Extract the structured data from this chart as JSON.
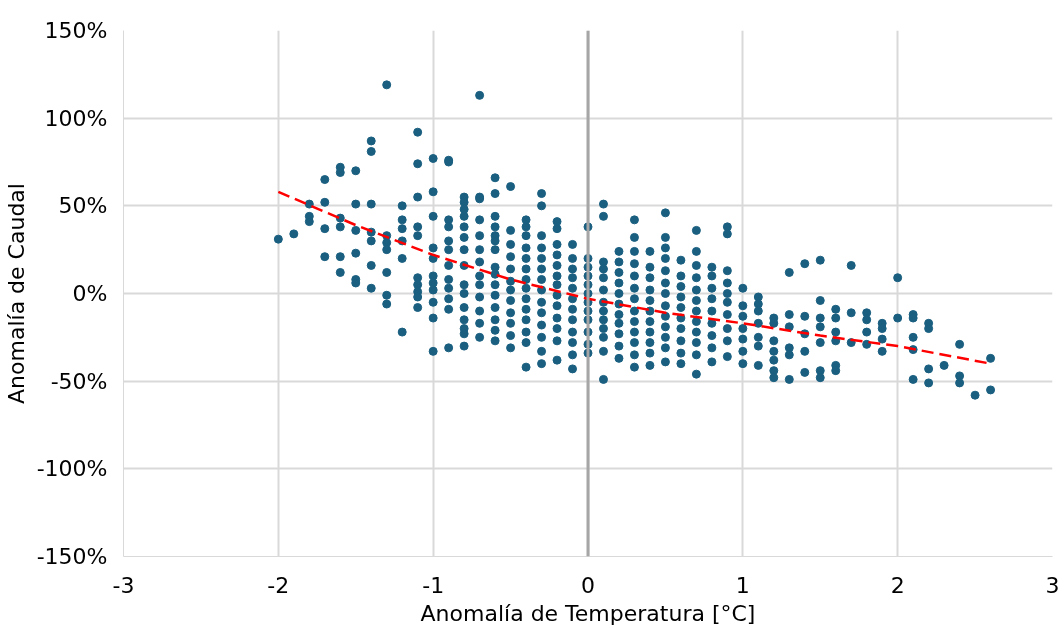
{
  "chart_data": {
    "type": "scatter",
    "xlabel": "Anomalía de Temperatura [°C]",
    "ylabel": "Anomalía de Caudal",
    "xlim": [
      -3,
      3
    ],
    "xticks": [
      -3,
      -2,
      -1,
      0,
      1,
      2,
      3
    ],
    "ylim": [
      -150,
      150
    ],
    "yticks": [
      {
        "value": -150,
        "label": "-150%"
      },
      {
        "value": -100,
        "label": "-100%"
      },
      {
        "value": -50,
        "label": "-50%"
      },
      {
        "value": 0,
        "label": "0%"
      },
      {
        "value": 50,
        "label": "50%"
      },
      {
        "value": 100,
        "label": "100%"
      },
      {
        "value": 150,
        "label": "150%"
      }
    ],
    "grid": true,
    "marker": "circle",
    "ref_lines": [
      {
        "axis": "x",
        "value": 0,
        "color": "#a6a6a6"
      }
    ],
    "series": [
      {
        "color": "#1a5f80",
        "x": [
          -2.0,
          -1.9,
          -1.8,
          -1.8,
          -1.8,
          -1.7,
          -1.7,
          -1.7,
          -1.7,
          -1.6,
          -1.6,
          -1.6,
          -1.6,
          -1.6,
          -1.6,
          -1.5,
          -1.5,
          -1.5,
          -1.5,
          -1.5,
          -1.5,
          -1.4,
          -1.4,
          -1.4,
          -1.4,
          -1.4,
          -1.4,
          -1.4,
          -1.3,
          -1.3,
          -1.3,
          -1.3,
          -1.3,
          -1.3,
          -1.3,
          -1.2,
          -1.2,
          -1.2,
          -1.2,
          -1.2,
          -1.2,
          -1.1,
          -1.1,
          -1.1,
          -1.1,
          -1.1,
          -1.1,
          -1.1,
          -1.1,
          -1.1,
          -1.1,
          -1.0,
          -1.0,
          -1.0,
          -1.0,
          -1.0,
          -1.0,
          -1.0,
          -1.0,
          -1.0,
          -1.0,
          -1.0,
          -0.9,
          -0.9,
          -0.9,
          -0.9,
          -0.9,
          -0.9,
          -0.9,
          -0.9,
          -0.9,
          -0.9,
          -0.9,
          -0.9,
          -0.8,
          -0.8,
          -0.8,
          -0.8,
          -0.8,
          -0.8,
          -0.8,
          -0.8,
          -0.8,
          -0.8,
          -0.8,
          -0.8,
          -0.8,
          -0.8,
          -0.8,
          -0.7,
          -0.7,
          -0.7,
          -0.7,
          -0.7,
          -0.7,
          -0.7,
          -0.7,
          -0.7,
          -0.7,
          -0.7,
          -0.7,
          -0.7,
          -0.6,
          -0.6,
          -0.6,
          -0.6,
          -0.6,
          -0.6,
          -0.6,
          -0.6,
          -0.6,
          -0.6,
          -0.6,
          -0.6,
          -0.6,
          -0.6,
          -0.6,
          -0.5,
          -0.5,
          -0.5,
          -0.5,
          -0.5,
          -0.5,
          -0.5,
          -0.5,
          -0.5,
          -0.5,
          -0.5,
          -0.5,
          -0.4,
          -0.4,
          -0.4,
          -0.4,
          -0.4,
          -0.4,
          -0.4,
          -0.4,
          -0.4,
          -0.4,
          -0.4,
          -0.4,
          -0.4,
          -0.4,
          -0.3,
          -0.3,
          -0.3,
          -0.3,
          -0.3,
          -0.3,
          -0.3,
          -0.3,
          -0.3,
          -0.3,
          -0.3,
          -0.3,
          -0.3,
          -0.3,
          -0.2,
          -0.2,
          -0.2,
          -0.2,
          -0.2,
          -0.2,
          -0.2,
          -0.2,
          -0.2,
          -0.2,
          -0.2,
          -0.2,
          -0.2,
          -0.1,
          -0.1,
          -0.1,
          -0.1,
          -0.1,
          -0.1,
          -0.1,
          -0.1,
          -0.1,
          -0.1,
          -0.1,
          -0.1,
          0.0,
          0.0,
          0.0,
          0.0,
          0.0,
          0.0,
          0.0,
          0.0,
          0.0,
          0.0,
          0.0,
          0.0,
          0.1,
          0.1,
          0.1,
          0.1,
          0.1,
          0.1,
          0.1,
          0.1,
          0.1,
          0.1,
          0.1,
          0.1,
          0.1,
          0.2,
          0.2,
          0.2,
          0.2,
          0.2,
          0.2,
          0.2,
          0.2,
          0.2,
          0.2,
          0.2,
          0.3,
          0.3,
          0.3,
          0.3,
          0.3,
          0.3,
          0.3,
          0.3,
          0.3,
          0.3,
          0.3,
          0.3,
          0.3,
          0.4,
          0.4,
          0.4,
          0.4,
          0.4,
          0.4,
          0.4,
          0.4,
          0.4,
          0.4,
          0.4,
          0.5,
          0.5,
          0.5,
          0.5,
          0.5,
          0.5,
          0.5,
          0.5,
          0.5,
          0.5,
          0.5,
          0.5,
          0.5,
          0.6,
          0.6,
          0.6,
          0.6,
          0.6,
          0.6,
          0.6,
          0.6,
          0.6,
          0.6,
          0.7,
          0.7,
          0.7,
          0.7,
          0.7,
          0.7,
          0.7,
          0.7,
          0.7,
          0.7,
          0.7,
          0.7,
          0.8,
          0.8,
          0.8,
          0.8,
          0.8,
          0.8,
          0.8,
          0.8,
          0.8,
          0.9,
          0.9,
          0.9,
          0.9,
          0.9,
          0.9,
          0.9,
          0.9,
          0.9,
          0.9,
          1.0,
          1.0,
          1.0,
          1.0,
          1.0,
          1.0,
          1.0,
          1.1,
          1.1,
          1.1,
          1.1,
          1.1,
          1.1,
          1.1,
          1.2,
          1.2,
          1.2,
          1.2,
          1.2,
          1.2,
          1.2,
          1.3,
          1.3,
          1.3,
          1.3,
          1.3,
          1.3,
          1.4,
          1.4,
          1.4,
          1.4,
          1.4,
          1.5,
          1.5,
          1.5,
          1.5,
          1.5,
          1.5,
          1.5,
          1.6,
          1.6,
          1.6,
          1.6,
          1.6,
          1.6,
          1.7,
          1.7,
          1.7,
          1.8,
          1.8,
          1.8,
          1.8,
          1.9,
          1.9,
          1.9,
          1.9,
          2.0,
          2.0,
          2.1,
          2.1,
          2.1,
          2.1,
          2.1,
          2.2,
          2.2,
          2.2,
          2.2,
          2.3,
          2.4,
          2.4,
          2.4,
          2.5,
          2.6,
          2.6
        ],
        "values": [
          31,
          34,
          51,
          44,
          41,
          65,
          52,
          37,
          21,
          72,
          69,
          43,
          38,
          21,
          12,
          70,
          51,
          36,
          23,
          8,
          6,
          87,
          81,
          51,
          35,
          30,
          16,
          3,
          119,
          33,
          29,
          25,
          12,
          -1,
          -6,
          50,
          42,
          37,
          30,
          20,
          -22,
          92,
          74,
          55,
          38,
          33,
          9,
          5,
          1,
          -2,
          -8,
          77,
          58,
          44,
          26,
          20,
          10,
          6,
          2,
          -5,
          -14,
          -33,
          76,
          75,
          42,
          38,
          30,
          25,
          16,
          8,
          3,
          -3,
          -9,
          -31,
          55,
          52,
          48,
          44,
          38,
          32,
          25,
          16,
          5,
          0,
          -8,
          -15,
          -20,
          -23,
          -30,
          113,
          55,
          54,
          42,
          33,
          25,
          18,
          10,
          5,
          -2,
          -10,
          -17,
          -25,
          66,
          57,
          44,
          38,
          33,
          30,
          25,
          15,
          11,
          5,
          -1,
          -8,
          -15,
          -21,
          -27,
          61,
          36,
          28,
          21,
          14,
          7,
          2,
          -4,
          -11,
          -17,
          -24,
          -31,
          42,
          38,
          33,
          26,
          20,
          14,
          8,
          3,
          -3,
          -9,
          -15,
          -22,
          -28,
          -42,
          57,
          50,
          33,
          26,
          20,
          14,
          8,
          2,
          -5,
          -11,
          -18,
          -25,
          -33,
          -40,
          41,
          37,
          28,
          22,
          16,
          10,
          5,
          -1,
          -7,
          -14,
          -20,
          -27,
          -38,
          28,
          20,
          14,
          9,
          3,
          -3,
          -9,
          -15,
          -22,
          -28,
          -35,
          -43,
          38,
          20,
          15,
          10,
          5,
          0,
          -5,
          -10,
          -15,
          -22,
          -29,
          -34,
          51,
          44,
          18,
          14,
          9,
          2,
          -5,
          -10,
          -15,
          -20,
          -25,
          -33,
          -49,
          24,
          18,
          12,
          6,
          0,
          -6,
          -12,
          -17,
          -23,
          -30,
          -37,
          42,
          32,
          24,
          17,
          10,
          3,
          -3,
          -10,
          -16,
          -22,
          -28,
          -35,
          -42,
          24,
          15,
          9,
          2,
          -4,
          -10,
          -16,
          -22,
          -28,
          -34,
          -41,
          46,
          32,
          26,
          20,
          13,
          6,
          0,
          -7,
          -13,
          -19,
          -25,
          -31,
          -39,
          19,
          10,
          4,
          -2,
          -8,
          -14,
          -20,
          -27,
          -34,
          -40,
          36,
          24,
          16,
          9,
          2,
          -4,
          -10,
          -16,
          -22,
          -28,
          -35,
          -46,
          15,
          10,
          3,
          -3,
          -10,
          -17,
          -24,
          -31,
          -39,
          38,
          34,
          13,
          6,
          0,
          -5,
          -12,
          -20,
          -27,
          -36,
          3,
          -7,
          -13,
          -20,
          -26,
          -33,
          -40,
          -2,
          -6,
          -10,
          -17,
          -25,
          -30,
          -41,
          -14,
          -17,
          -27,
          -33,
          -38,
          -44,
          -48,
          12,
          -12,
          -19,
          -31,
          -35,
          -49,
          17,
          -13,
          -23,
          -33,
          -45,
          19,
          -4,
          -14,
          -19,
          -28,
          -44,
          -48,
          -9,
          -14,
          -22,
          -27,
          -41,
          -44,
          16,
          -11,
          -28,
          -11,
          -15,
          -22,
          -29,
          -17,
          -20,
          -26,
          -33,
          9,
          -14,
          -12,
          -14,
          -25,
          -32,
          -49,
          -17,
          -20,
          -43,
          -51,
          -41,
          -29,
          -47,
          -51,
          -58,
          -37,
          -55
        ]
      },
      {
        "type": "line",
        "color": "#ff0000",
        "line_style": "dashed",
        "marker": "none",
        "x": [
          -2.0,
          -1.5,
          -1.0,
          -0.5,
          0.0,
          0.5,
          1.0,
          1.5,
          2.0,
          2.6
        ],
        "values": [
          58,
          39,
          22,
          8,
          -3,
          -11,
          -17,
          -24,
          -30,
          -40
        ]
      }
    ]
  }
}
